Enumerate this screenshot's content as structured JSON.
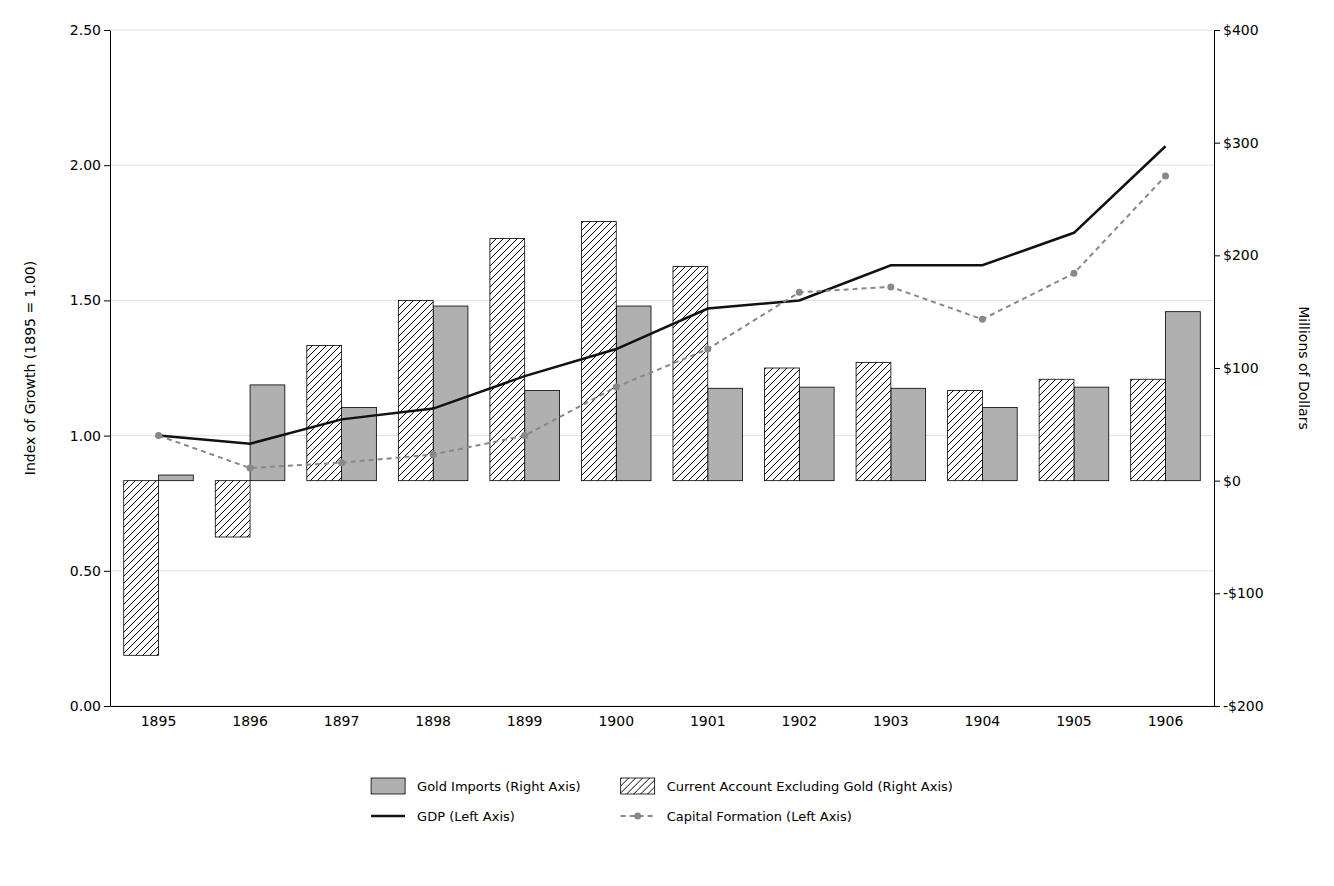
{
  "chart_data": {
    "type": "bar",
    "categories": [
      "1895",
      "1896",
      "1897",
      "1898",
      "1899",
      "1900",
      "1901",
      "1902",
      "1903",
      "1904",
      "1905",
      "1906"
    ],
    "series": [
      {
        "name": "Gold Imports (Right Axis)",
        "type": "bar",
        "axis": "y2",
        "color": "#b0b0b0",
        "values": [
          5,
          85,
          65,
          155,
          80,
          155,
          82,
          83,
          82,
          65,
          83,
          150
        ]
      },
      {
        "name": "Current Account Excluding Gold (Right Axis)",
        "type": "bar",
        "axis": "y2",
        "color": "#ffffff",
        "values": [
          -155,
          -50,
          120,
          160,
          215,
          230,
          190,
          100,
          105,
          80,
          90,
          90
        ]
      },
      {
        "name": "GDP (Left Axis)",
        "type": "line",
        "color": "#111111",
        "line_style": "solid",
        "values": [
          1.0,
          0.97,
          1.06,
          1.1,
          1.22,
          1.32,
          1.47,
          1.5,
          1.63,
          1.63,
          1.75,
          2.07
        ]
      },
      {
        "name": "Capital Formation (Left Axis)",
        "type": "line",
        "color": "#888888",
        "line_style": "dashed",
        "marker": "circle",
        "values": [
          1.0,
          0.88,
          0.9,
          0.93,
          1.0,
          1.18,
          1.32,
          1.53,
          1.55,
          1.43,
          1.6,
          1.96
        ]
      }
    ],
    "ylabel": "Index of Growth (1895 = 1.00)",
    "y2label": "Millions of Dollars",
    "ylim": [
      0.0,
      2.5
    ],
    "yticks": [
      {
        "value": 0.0,
        "label": "0.00"
      },
      {
        "value": 0.5,
        "label": "0.50"
      },
      {
        "value": 1.0,
        "label": "1.00"
      },
      {
        "value": 1.5,
        "label": "1.50"
      },
      {
        "value": 2.0,
        "label": "2.00"
      },
      {
        "value": 2.5,
        "label": "2.50"
      }
    ],
    "y2lim": [
      -200,
      400
    ],
    "y2ticks": [
      {
        "value": -200,
        "label": "-$200"
      },
      {
        "value": -100,
        "label": "-$100"
      },
      {
        "value": 0,
        "label": "$0"
      },
      {
        "value": 100,
        "label": "$100"
      },
      {
        "value": 200,
        "label": "$200"
      },
      {
        "value": 300,
        "label": "$300"
      },
      {
        "value": 400,
        "label": "$400"
      }
    ],
    "grid": true,
    "legend": "bottom"
  }
}
